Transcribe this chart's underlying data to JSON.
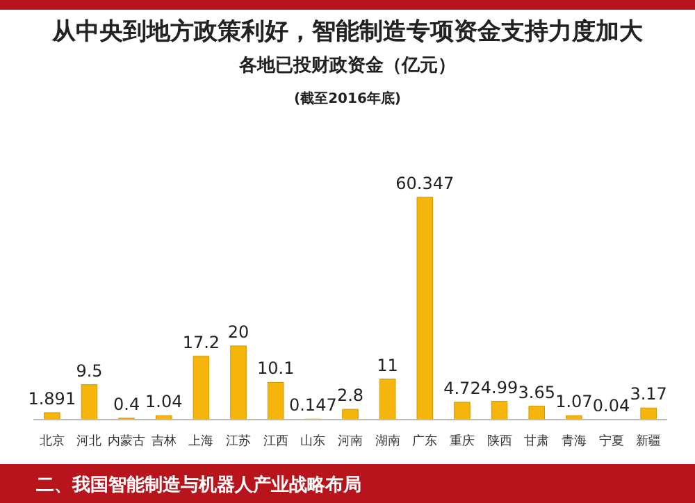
{
  "chart_data": {
    "type": "bar",
    "title": "从中央到地方政策利好，智能制造专项资金支持力度加大",
    "subtitle": "各地已投财政资金（亿元）",
    "annotations": [
      "(截至2016年底)",
      "二、我国智能制造与机器人产业战略布局"
    ],
    "categories": [
      "北京",
      "河北",
      "内蒙古",
      "吉林",
      "上海",
      "江苏",
      "江西",
      "山东",
      "河南",
      "湖南",
      "广东",
      "重庆",
      "陕西",
      "甘肃",
      "青海",
      "宁夏",
      "新疆"
    ],
    "values": [
      1.891,
      9.5,
      0.4,
      1.04,
      17.2,
      20,
      10.1,
      0.147,
      2.8,
      11,
      60.347,
      4.72,
      4.99,
      3.65,
      1.07,
      0.04,
      3.17
    ],
    "color": "#f5b50a",
    "data_labels": true
  }
}
